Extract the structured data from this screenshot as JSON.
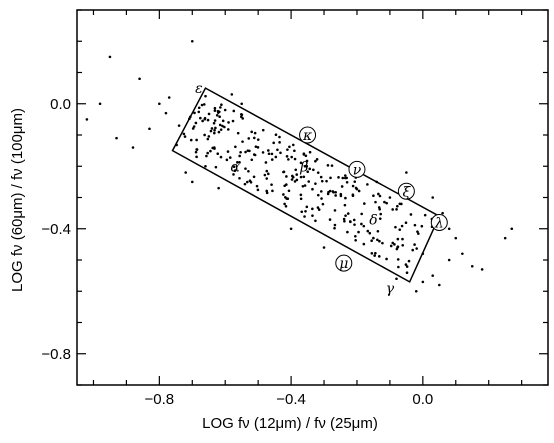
{
  "chart_data": {
    "type": "scatter",
    "title": "",
    "xlabel": "LOG  fν (12μm) / fν (25μm)",
    "ylabel": "LOG  fν (60μm) / fν (100μm)",
    "xlim": [
      -1.05,
      0.38
    ],
    "ylim": [
      -0.9,
      0.3
    ],
    "x_ticks": [
      -0.8,
      -0.4,
      0.0
    ],
    "x_tick_labels": [
      "−0.8",
      "−0.4",
      "0.0"
    ],
    "y_ticks": [
      0.0,
      -0.4,
      -0.8
    ],
    "y_tick_labels": [
      "0.0",
      "−0.4",
      "−0.8"
    ],
    "grid": false,
    "box": {
      "corners": [
        [
          -0.66,
          0.05
        ],
        [
          0.05,
          -0.36
        ],
        [
          -0.04,
          -0.57
        ],
        [
          -0.76,
          -0.15
        ]
      ]
    },
    "labels": [
      {
        "text": "ε",
        "x": -0.68,
        "y": 0.05,
        "circled": false
      },
      {
        "text": "κ",
        "x": -0.35,
        "y": -0.1,
        "circled": true
      },
      {
        "text": "ν",
        "x": -0.2,
        "y": -0.21,
        "circled": true
      },
      {
        "text": "ξ",
        "x": -0.05,
        "y": -0.28,
        "circled": true
      },
      {
        "text": "λ",
        "x": 0.05,
        "y": -0.38,
        "circled": true
      },
      {
        "text": "α",
        "x": -0.57,
        "y": -0.2,
        "circled": false
      },
      {
        "text": "β",
        "x": -0.36,
        "y": -0.2,
        "circled": false
      },
      {
        "text": "δ",
        "x": -0.15,
        "y": -0.37,
        "circled": false
      },
      {
        "text": "μ",
        "x": -0.24,
        "y": -0.51,
        "circled": true
      },
      {
        "text": "γ",
        "x": -0.1,
        "y": -0.59,
        "circled": false
      }
    ],
    "points_outside": [
      [
        -1.02,
        -0.05
      ],
      [
        -0.95,
        0.15
      ],
      [
        -0.98,
        0.0
      ],
      [
        -0.93,
        -0.11
      ],
      [
        -0.83,
        -0.08
      ],
      [
        -0.8,
        0.0
      ],
      [
        -0.78,
        -0.03
      ],
      [
        -0.86,
        0.08
      ],
      [
        -0.88,
        -0.14
      ],
      [
        -0.7,
        0.2
      ],
      [
        -0.74,
        -0.07
      ],
      [
        -0.77,
        0.02
      ],
      [
        -0.66,
        -0.2
      ],
      [
        -0.7,
        -0.25
      ],
      [
        -0.72,
        -0.22
      ],
      [
        -0.62,
        -0.27
      ],
      [
        -0.58,
        0.03
      ],
      [
        -0.55,
        0.0
      ],
      [
        -0.6,
        -0.02
      ],
      [
        -0.14,
        -0.25
      ],
      [
        -0.1,
        -0.3
      ],
      [
        -0.05,
        -0.22
      ],
      [
        -0.07,
        -0.32
      ],
      [
        0.03,
        -0.3
      ],
      [
        0.08,
        -0.4
      ],
      [
        0.1,
        -0.43
      ],
      [
        0.12,
        -0.48
      ],
      [
        0.08,
        -0.5
      ],
      [
        0.03,
        -0.55
      ],
      [
        -0.02,
        -0.6
      ],
      [
        0.05,
        -0.58
      ],
      [
        0.15,
        -0.52
      ],
      [
        0.18,
        -0.53
      ],
      [
        0.25,
        -0.43
      ],
      [
        0.27,
        -0.4
      ],
      [
        -0.3,
        -0.46
      ],
      [
        -0.4,
        -0.4
      ],
      [
        0.0,
        -0.57
      ],
      [
        -0.08,
        -0.56
      ],
      [
        0.0,
        -0.48
      ],
      [
        0.06,
        -0.35
      ]
    ]
  }
}
